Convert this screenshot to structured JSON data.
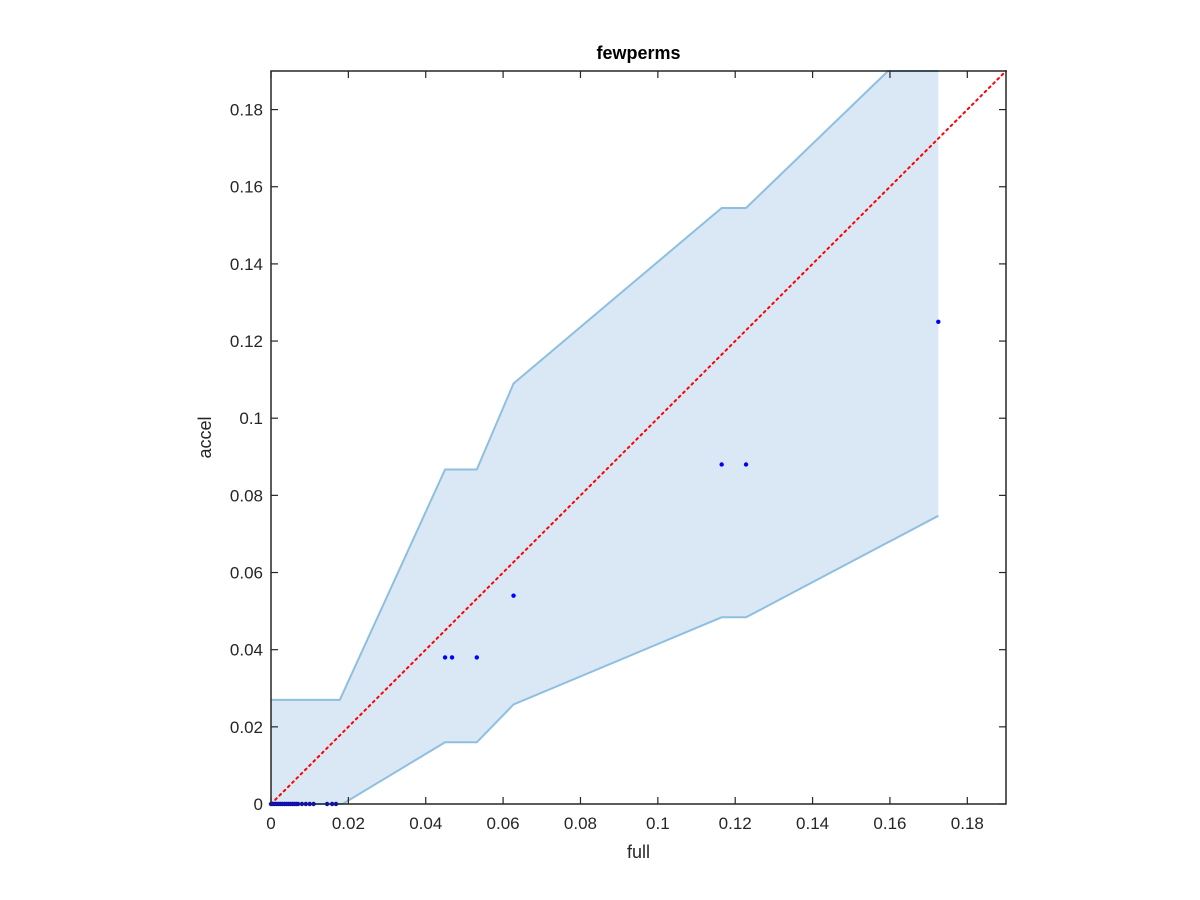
{
  "chart_data": {
    "type": "scatter",
    "title": "fewperms",
    "xlabel": "full",
    "ylabel": "accel",
    "xlim": [
      0,
      0.19
    ],
    "ylim": [
      0,
      0.19
    ],
    "xticks": [
      0,
      0.02,
      0.04,
      0.06,
      0.08,
      0.1,
      0.12,
      0.14,
      0.16,
      0.18
    ],
    "yticks": [
      0,
      0.02,
      0.04,
      0.06,
      0.08,
      0.1,
      0.12,
      0.14,
      0.16,
      0.18
    ],
    "xtick_labels": [
      "0",
      "0.02",
      "0.04",
      "0.06",
      "0.08",
      "0.1",
      "0.12",
      "0.14",
      "0.16",
      "0.18"
    ],
    "ytick_labels": [
      "0",
      "0.02",
      "0.04",
      "0.06",
      "0.08",
      "0.1",
      "0.12",
      "0.14",
      "0.16",
      "0.18"
    ],
    "grid": false,
    "band": {
      "upper": [
        [
          0,
          0.027
        ],
        [
          0.0178,
          0.027
        ],
        [
          0.045,
          0.0867
        ],
        [
          0.0532,
          0.0867
        ],
        [
          0.0627,
          0.109
        ],
        [
          0.1165,
          0.1545
        ],
        [
          0.1228,
          0.1545
        ],
        [
          0.1595,
          0.19
        ],
        [
          0.1725,
          0.19
        ]
      ],
      "lower": [
        [
          0,
          0
        ],
        [
          0.0185,
          0
        ],
        [
          0.045,
          0.016
        ],
        [
          0.0532,
          0.016
        ],
        [
          0.0627,
          0.0258
        ],
        [
          0.1165,
          0.0484
        ],
        [
          0.1228,
          0.0484
        ],
        [
          0.1725,
          0.0747
        ]
      ],
      "fill_color": "#d9e8f4",
      "edge_color": "#8fbfe0"
    },
    "reference_line": {
      "from": [
        0,
        0
      ],
      "to": [
        0.19,
        0.19
      ],
      "color": "#ff0000",
      "style": "dotted"
    },
    "points": {
      "color": "#0000ff",
      "x": [
        0,
        0.0005,
        0.001,
        0.0015,
        0.002,
        0.0025,
        0.003,
        0.0035,
        0.004,
        0.0045,
        0.005,
        0.0055,
        0.006,
        0.0065,
        0.007,
        0.008,
        0.009,
        0.01,
        0.011,
        0.0145,
        0.0158,
        0.0168,
        0.045,
        0.0468,
        0.0532,
        0.0627,
        0.1165,
        0.1228,
        0.1725
      ],
      "y": [
        0,
        0,
        0,
        0,
        0,
        0,
        0,
        0,
        0,
        0,
        0,
        0,
        0,
        0,
        0,
        0,
        0,
        0,
        0,
        0,
        0,
        0,
        0.038,
        0.038,
        0.038,
        0.054,
        0.088,
        0.088,
        0.125
      ]
    },
    "axes_color": "#262626"
  }
}
